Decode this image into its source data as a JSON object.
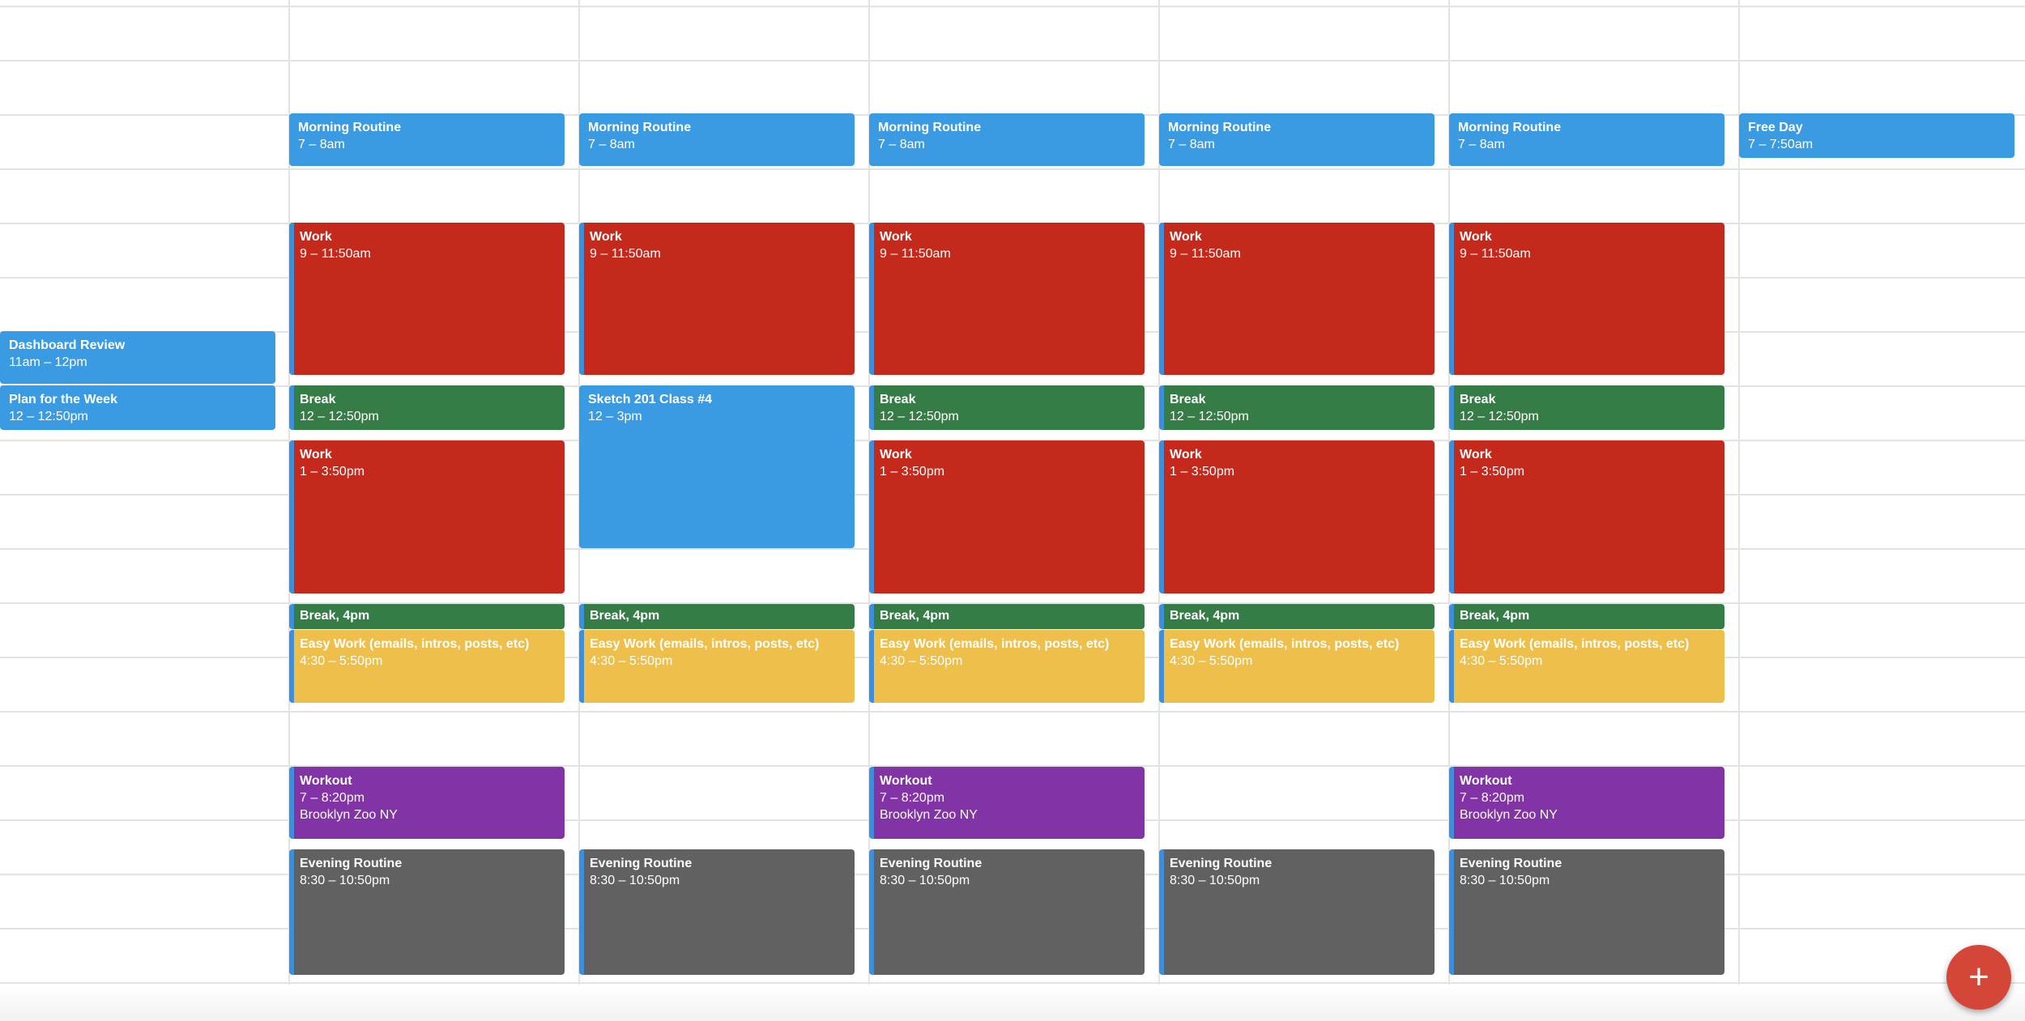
{
  "colors": {
    "blue": "#3b9be2",
    "red": "#c5291c",
    "green": "#367c47",
    "yellow": "#efbf4c",
    "purple": "#8233a6",
    "gray": "#616161",
    "fab": "#d44638",
    "grid_line": "#e3e3e3"
  },
  "fab": {
    "icon": "plus-icon",
    "glyph": "+"
  },
  "days": [
    {
      "events": [
        {
          "title": "Dashboard Review",
          "time": "11am – 12pm",
          "color": "blue"
        },
        {
          "title": "Plan for the Week",
          "time": "12 – 12:50pm",
          "color": "blue"
        }
      ]
    },
    {
      "events": [
        {
          "title": "Morning Routine",
          "time": "7 – 8am",
          "color": "blue"
        },
        {
          "title": "Work",
          "time": "9 – 11:50am",
          "color": "red"
        },
        {
          "title": "Break",
          "time": "12 – 12:50pm",
          "color": "green"
        },
        {
          "title": "Work",
          "time": "1 – 3:50pm",
          "color": "red"
        },
        {
          "title": "Break, 4pm",
          "color": "green"
        },
        {
          "title": "Easy Work (emails, intros, posts, etc)",
          "time": "4:30 – 5:50pm",
          "color": "yellow"
        },
        {
          "title": "Workout",
          "time": "7 – 8:20pm",
          "location": "Brooklyn Zoo NY",
          "color": "purple"
        },
        {
          "title": "Evening Routine",
          "time": "8:30 – 10:50pm",
          "color": "gray"
        }
      ]
    },
    {
      "events": [
        {
          "title": "Morning Routine",
          "time": "7 – 8am",
          "color": "blue"
        },
        {
          "title": "Work",
          "time": "9 – 11:50am",
          "color": "red"
        },
        {
          "title": "Sketch 201 Class #4",
          "time": "12 – 3pm",
          "color": "blue"
        },
        {
          "title": "Break, 4pm",
          "color": "green"
        },
        {
          "title": "Easy Work (emails, intros, posts, etc)",
          "time": "4:30 – 5:50pm",
          "color": "yellow"
        },
        {
          "title": "Evening Routine",
          "time": "8:30 – 10:50pm",
          "color": "gray"
        }
      ]
    },
    {
      "events": [
        {
          "title": "Morning Routine",
          "time": "7 – 8am",
          "color": "blue"
        },
        {
          "title": "Work",
          "time": "9 – 11:50am",
          "color": "red"
        },
        {
          "title": "Break",
          "time": "12 – 12:50pm",
          "color": "green"
        },
        {
          "title": "Work",
          "time": "1 – 3:50pm",
          "color": "red"
        },
        {
          "title": "Break, 4pm",
          "color": "green"
        },
        {
          "title": "Easy Work (emails, intros, posts, etc)",
          "time": "4:30 – 5:50pm",
          "color": "yellow"
        },
        {
          "title": "Workout",
          "time": "7 – 8:20pm",
          "location": "Brooklyn Zoo NY",
          "color": "purple"
        },
        {
          "title": "Evening Routine",
          "time": "8:30 – 10:50pm",
          "color": "gray"
        }
      ]
    },
    {
      "events": [
        {
          "title": "Morning Routine",
          "time": "7 – 8am",
          "color": "blue"
        },
        {
          "title": "Work",
          "time": "9 – 11:50am",
          "color": "red"
        },
        {
          "title": "Break",
          "time": "12 – 12:50pm",
          "color": "green"
        },
        {
          "title": "Work",
          "time": "1 – 3:50pm",
          "color": "red"
        },
        {
          "title": "Break, 4pm",
          "color": "green"
        },
        {
          "title": "Easy Work (emails, intros, posts, etc)",
          "time": "4:30 – 5:50pm",
          "color": "yellow"
        },
        {
          "title": "Evening Routine",
          "time": "8:30 – 10:50pm",
          "color": "gray"
        }
      ]
    },
    {
      "events": [
        {
          "title": "Morning Routine",
          "time": "7 – 8am",
          "color": "blue"
        },
        {
          "title": "Work",
          "time": "9 – 11:50am",
          "color": "red"
        },
        {
          "title": "Break",
          "time": "12 – 12:50pm",
          "color": "green"
        },
        {
          "title": "Work",
          "time": "1 – 3:50pm",
          "color": "red"
        },
        {
          "title": "Break, 4pm",
          "color": "green"
        },
        {
          "title": "Easy Work (emails, intros, posts, etc)",
          "time": "4:30 – 5:50pm",
          "color": "yellow"
        },
        {
          "title": "Workout",
          "time": "7 – 8:20pm",
          "location": "Brooklyn Zoo NY",
          "color": "purple"
        },
        {
          "title": "Evening Routine",
          "time": "8:30 – 10:50pm",
          "color": "gray"
        }
      ]
    },
    {
      "events": [
        {
          "title": "Free Day",
          "time": "7 – 7:50am",
          "color": "blue"
        }
      ]
    }
  ]
}
